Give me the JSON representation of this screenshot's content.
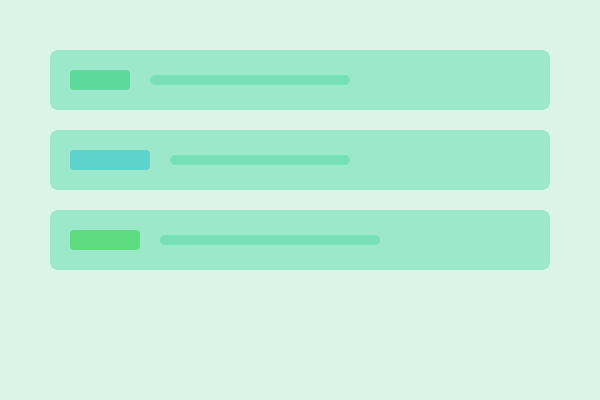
{
  "colors": {
    "background": "#daf5e8",
    "card": "#9be9ca",
    "line": "#78e0b6"
  },
  "list": {
    "items": [
      {
        "badge_color": "#5dd99b"
      },
      {
        "badge_color": "#5dd3cd"
      },
      {
        "badge_color": "#5ddc7f"
      }
    ]
  }
}
